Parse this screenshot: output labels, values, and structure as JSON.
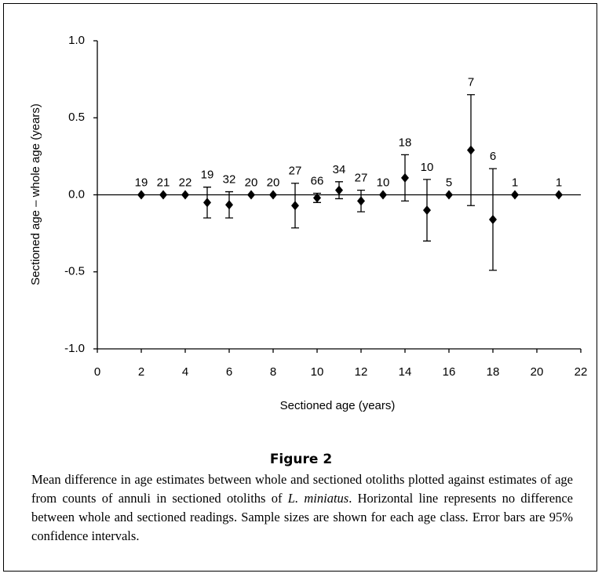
{
  "chart_data": {
    "type": "scatter",
    "xlabel": "Sectioned age (years)",
    "ylabel": "Sectioned age – whole age (years)",
    "x": [
      2,
      3,
      4,
      5,
      6,
      7,
      8,
      9,
      10,
      11,
      12,
      13,
      14,
      15,
      16,
      17,
      18,
      19,
      21
    ],
    "series": [
      {
        "color": "#000000",
        "values": [
          0,
          0,
          0,
          -0.05,
          -0.065,
          0,
          0,
          -0.07,
          -0.02,
          0.03,
          -0.04,
          0,
          0.11,
          -0.1,
          0,
          0.29,
          -0.16,
          0,
          0
        ],
        "errors": [
          null,
          null,
          null,
          0.1,
          0.085,
          null,
          null,
          0.145,
          0.03,
          0.055,
          0.07,
          null,
          0.15,
          0.2,
          null,
          0.36,
          0.33,
          null,
          null
        ],
        "sample_sizes": [
          19,
          21,
          22,
          19,
          32,
          20,
          20,
          27,
          66,
          34,
          27,
          10,
          18,
          10,
          5,
          7,
          6,
          1,
          1
        ]
      }
    ],
    "xlim": [
      0,
      22
    ],
    "xticks": [
      0,
      2,
      4,
      6,
      8,
      10,
      12,
      14,
      16,
      18,
      20,
      22
    ],
    "ylim": [
      -1,
      1
    ],
    "yticks": [
      {
        "value": -1,
        "label": "-1.0"
      },
      {
        "value": -0.5,
        "label": "-0.5"
      },
      {
        "value": 0,
        "label": "0.0"
      },
      {
        "value": 0.5,
        "label": "0.5"
      },
      {
        "value": 1,
        "label": "1.0"
      }
    ],
    "reference_line": 0
  },
  "figure": {
    "label": "Figure 2",
    "caption_before": "Mean difference in age estimates between whole and sectioned otoliths plotted against estimates of age from counts of annuli in sectioned otoliths of ",
    "caption_italic": "L. miniatus",
    "caption_after": ". Horizontal line represents no difference between whole and sectioned readings. Sample sizes are shown for each age class. Error bars are 95% confidence intervals."
  }
}
